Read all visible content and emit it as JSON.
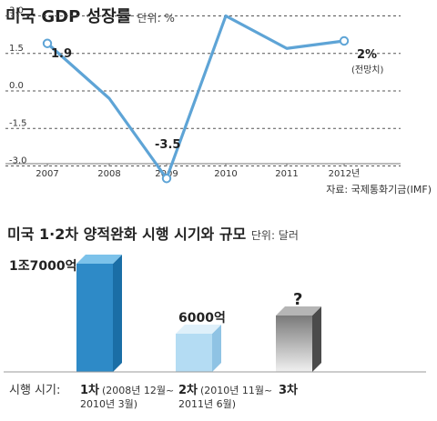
{
  "chart_data": [
    {
      "type": "line",
      "title": "미국 GDP 성장률",
      "unit_label": "단위: %",
      "categories": [
        "2007",
        "2008",
        "2009",
        "2010",
        "2011",
        "2012년"
      ],
      "series": [
        {
          "values": [
            1.9,
            -0.3,
            -3.5,
            3.0,
            1.7,
            2.0
          ]
        }
      ],
      "point_labels": [
        {
          "index": 0,
          "text": "1.9"
        },
        {
          "index": 2,
          "text": "-3.5"
        },
        {
          "index": 5,
          "text": "2%",
          "subtext": "(전망치)"
        }
      ],
      "yticks": [
        "3.0",
        "1.5",
        "0.0",
        "-1.5",
        "-3.0"
      ],
      "ylim": [
        -3.5,
        3.5
      ],
      "grid": "dashed horizontal",
      "source": "자료: 국제통화기금(IMF)",
      "line_color": "#5ea4d6"
    },
    {
      "type": "bar",
      "title": "미국 1·2차 양적완화 시행 시기와 규모",
      "unit_label": "단위: 달러",
      "row_label": "시행 시기:",
      "categories": [
        "1차",
        "2차",
        "3차"
      ],
      "period_labels": [
        [
          "(2008년 12월~",
          "2010년 3월)"
        ],
        [
          "(2010년 11월~",
          "2011년 6월)"
        ],
        []
      ],
      "values": [
        17000,
        6000,
        null
      ],
      "value_labels": [
        "1조7000억",
        "6000억",
        "?"
      ],
      "colors": [
        "#2e8ac7",
        "#b4dcf3",
        "#7a7a7a"
      ]
    }
  ]
}
